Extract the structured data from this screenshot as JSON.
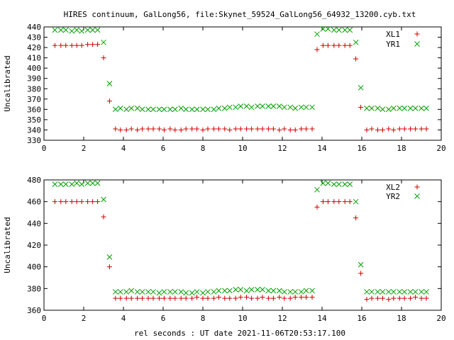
{
  "figure": {
    "title": "HIRES continuum, GalLong56, file:Skynet_59524_GalLong56_64932_13200.cyb.txt",
    "xlabel": "rel seconds : UT date 2021-11-06T20:53:17.100"
  },
  "colors": {
    "plus": "#cc0000",
    "cross": "#00a000"
  },
  "chart_data": [
    {
      "type": "scatter",
      "title": "HIRES continuum, GalLong56, file:Skynet_59524_GalLong56_64932_13200.cyb.txt",
      "xlabel": "",
      "ylabel": "Uncalibrated",
      "xlim": [
        0,
        20
      ],
      "ylim": [
        330,
        440
      ],
      "xticks": [
        0,
        2,
        4,
        6,
        8,
        10,
        12,
        14,
        16,
        18,
        20
      ],
      "yticks": [
        330,
        340,
        350,
        360,
        370,
        380,
        390,
        400,
        410,
        420,
        430,
        440
      ],
      "grid": false,
      "legend_position": "top-right",
      "series": [
        {
          "name": "XL1",
          "marker": "plus",
          "color": "#cc0000",
          "x": [
            0.55,
            0.85,
            1.1,
            1.4,
            1.65,
            1.9,
            2.2,
            2.45,
            2.7,
            3.0,
            3.3,
            3.6,
            3.85,
            4.15,
            4.4,
            4.7,
            4.95,
            5.25,
            5.5,
            5.8,
            6.05,
            6.35,
            6.6,
            6.9,
            7.15,
            7.45,
            7.7,
            8.0,
            8.25,
            8.55,
            8.8,
            9.1,
            9.35,
            9.65,
            9.9,
            10.2,
            10.45,
            10.75,
            11.0,
            11.3,
            11.55,
            11.85,
            12.1,
            12.4,
            12.65,
            12.95,
            13.2,
            13.5,
            13.75,
            14.05,
            14.3,
            14.6,
            14.85,
            15.15,
            15.4,
            15.7,
            15.95,
            16.25,
            16.5,
            16.8,
            17.05,
            17.35,
            17.6,
            17.9,
            18.15,
            18.45,
            18.7,
            19.0,
            19.25
          ],
          "y": [
            422,
            422,
            422,
            422,
            422,
            422,
            423,
            423,
            423,
            410,
            368,
            341,
            340,
            340,
            341,
            340,
            341,
            341,
            341,
            341,
            340,
            341,
            340,
            340,
            341,
            341,
            341,
            340,
            341,
            341,
            341,
            341,
            340,
            341,
            341,
            341,
            341,
            341,
            341,
            341,
            341,
            340,
            341,
            340,
            340,
            341,
            341,
            341,
            418,
            422,
            422,
            422,
            422,
            422,
            422,
            409,
            362,
            340,
            341,
            340,
            340,
            341,
            340,
            341,
            341,
            341,
            341,
            341,
            341
          ]
        },
        {
          "name": "YR1",
          "marker": "cross",
          "color": "#00a000",
          "x": [
            0.55,
            0.85,
            1.1,
            1.4,
            1.65,
            1.9,
            2.2,
            2.45,
            2.7,
            3.0,
            3.3,
            3.6,
            3.85,
            4.15,
            4.4,
            4.7,
            4.95,
            5.25,
            5.5,
            5.8,
            6.05,
            6.35,
            6.6,
            6.9,
            7.15,
            7.45,
            7.7,
            8.0,
            8.25,
            8.55,
            8.8,
            9.1,
            9.35,
            9.65,
            9.9,
            10.2,
            10.45,
            10.75,
            11.0,
            11.3,
            11.55,
            11.85,
            12.1,
            12.4,
            12.65,
            12.95,
            13.2,
            13.5,
            13.75,
            14.05,
            14.3,
            14.6,
            14.85,
            15.15,
            15.4,
            15.7,
            15.95,
            16.25,
            16.5,
            16.8,
            17.05,
            17.35,
            17.6,
            17.9,
            18.15,
            18.45,
            18.7,
            19.0,
            19.25
          ],
          "y": [
            437,
            437,
            437,
            436,
            437,
            436,
            437,
            437,
            437,
            425,
            385,
            360,
            361,
            360,
            361,
            361,
            360,
            360,
            360,
            360,
            360,
            360,
            360,
            361,
            360,
            360,
            360,
            360,
            360,
            360,
            361,
            361,
            362,
            362,
            363,
            363,
            362,
            363,
            363,
            363,
            363,
            363,
            362,
            362,
            361,
            362,
            362,
            362,
            433,
            438,
            438,
            437,
            437,
            437,
            437,
            425,
            381,
            361,
            361,
            361,
            360,
            360,
            361,
            361,
            361,
            361,
            361,
            361,
            361
          ]
        }
      ]
    },
    {
      "type": "scatter",
      "title": "",
      "xlabel": "rel seconds : UT date 2021-11-06T20:53:17.100",
      "ylabel": "Uncalibrated",
      "xlim": [
        0,
        20
      ],
      "ylim": [
        360,
        480
      ],
      "xticks": [
        0,
        2,
        4,
        6,
        8,
        10,
        12,
        14,
        16,
        18,
        20
      ],
      "yticks": [
        360,
        380,
        400,
        420,
        440,
        460,
        480
      ],
      "grid": false,
      "legend_position": "top-right",
      "series": [
        {
          "name": "XL2",
          "marker": "plus",
          "color": "#cc0000",
          "x": [
            0.55,
            0.85,
            1.1,
            1.4,
            1.65,
            1.9,
            2.2,
            2.45,
            2.7,
            3.0,
            3.3,
            3.6,
            3.85,
            4.15,
            4.4,
            4.7,
            4.95,
            5.25,
            5.5,
            5.8,
            6.05,
            6.35,
            6.6,
            6.9,
            7.15,
            7.45,
            7.7,
            8.0,
            8.25,
            8.55,
            8.8,
            9.1,
            9.35,
            9.65,
            9.9,
            10.2,
            10.45,
            10.75,
            11.0,
            11.3,
            11.55,
            11.85,
            12.1,
            12.4,
            12.65,
            12.95,
            13.2,
            13.5,
            13.75,
            14.05,
            14.3,
            14.6,
            14.85,
            15.15,
            15.4,
            15.7,
            15.95,
            16.25,
            16.5,
            16.8,
            17.05,
            17.35,
            17.6,
            17.9,
            18.15,
            18.45,
            18.7,
            19.0,
            19.25
          ],
          "y": [
            460,
            460,
            460,
            460,
            460,
            460,
            460,
            460,
            460,
            446,
            400,
            371,
            371,
            371,
            371,
            371,
            371,
            371,
            371,
            371,
            371,
            371,
            371,
            371,
            371,
            371,
            372,
            371,
            371,
            371,
            372,
            371,
            371,
            371,
            372,
            372,
            371,
            371,
            372,
            371,
            371,
            372,
            371,
            371,
            372,
            372,
            372,
            372,
            455,
            460,
            460,
            460,
            460,
            460,
            460,
            445,
            394,
            370,
            371,
            371,
            371,
            370,
            371,
            371,
            371,
            371,
            372,
            371,
            371
          ]
        },
        {
          "name": "YR2",
          "marker": "cross",
          "color": "#00a000",
          "x": [
            0.55,
            0.85,
            1.1,
            1.4,
            1.65,
            1.9,
            2.2,
            2.45,
            2.7,
            3.0,
            3.3,
            3.6,
            3.85,
            4.15,
            4.4,
            4.7,
            4.95,
            5.25,
            5.5,
            5.8,
            6.05,
            6.35,
            6.6,
            6.9,
            7.15,
            7.45,
            7.7,
            8.0,
            8.25,
            8.55,
            8.8,
            9.1,
            9.35,
            9.65,
            9.9,
            10.2,
            10.45,
            10.75,
            11.0,
            11.3,
            11.55,
            11.85,
            12.1,
            12.4,
            12.65,
            12.95,
            13.2,
            13.5,
            13.75,
            14.05,
            14.3,
            14.6,
            14.85,
            15.15,
            15.4,
            15.7,
            15.95,
            16.25,
            16.5,
            16.8,
            17.05,
            17.35,
            17.6,
            17.9,
            18.15,
            18.45,
            18.7,
            19.0,
            19.25
          ],
          "y": [
            476,
            476,
            476,
            476,
            477,
            476,
            477,
            477,
            477,
            462,
            409,
            377,
            377,
            377,
            378,
            377,
            377,
            377,
            377,
            376,
            377,
            377,
            377,
            377,
            376,
            376,
            377,
            376,
            377,
            377,
            378,
            378,
            378,
            379,
            379,
            378,
            379,
            379,
            379,
            378,
            378,
            378,
            377,
            377,
            377,
            377,
            378,
            378,
            471,
            477,
            477,
            476,
            476,
            476,
            476,
            460,
            402,
            377,
            377,
            377,
            377,
            377,
            377,
            377,
            377,
            377,
            377,
            377,
            377
          ]
        }
      ]
    }
  ]
}
